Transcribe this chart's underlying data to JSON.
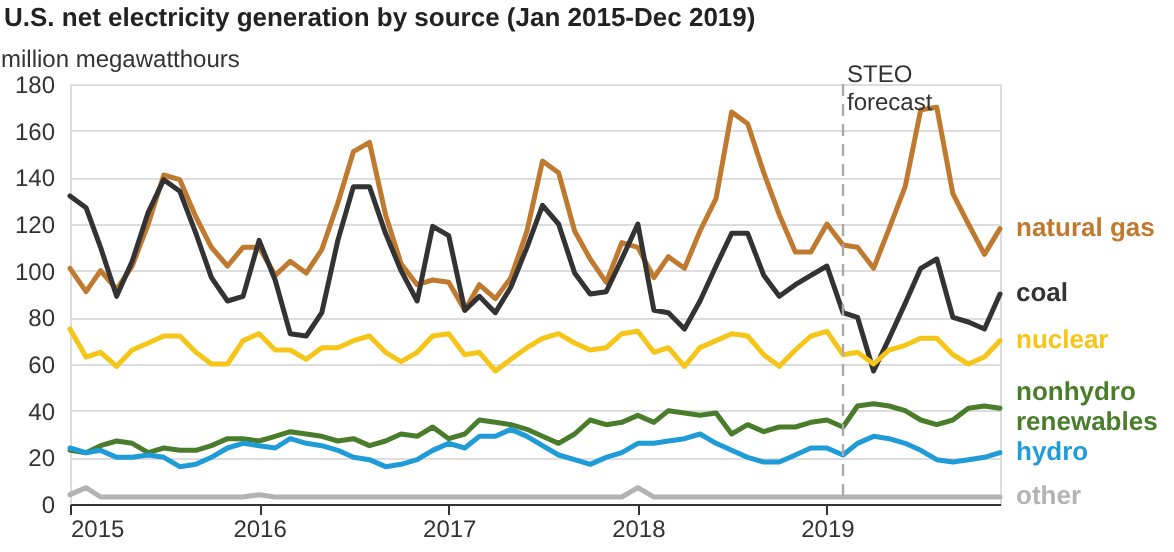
{
  "chart_data": {
    "type": "line",
    "title": "U.S. net electricity generation by source (Jan 2015-Dec 2019)",
    "ylabel": "million megawatthours",
    "xlim": [
      "2015-01",
      "2019-12"
    ],
    "xticks": [
      {
        "value": "2015-01",
        "label": "2015"
      },
      {
        "value": "2016-01",
        "label": "2016"
      },
      {
        "value": "2017-01",
        "label": "2017"
      },
      {
        "value": "2018-01",
        "label": "2018"
      },
      {
        "value": "2019-01",
        "label": "2019"
      }
    ],
    "ylim": [
      0,
      180
    ],
    "yticks": [
      0,
      20,
      40,
      60,
      80,
      100,
      120,
      140,
      160,
      180
    ],
    "grid": "y",
    "x": [
      "2015-01",
      "2015-02",
      "2015-03",
      "2015-04",
      "2015-05",
      "2015-06",
      "2015-07",
      "2015-08",
      "2015-09",
      "2015-10",
      "2015-11",
      "2015-12",
      "2016-01",
      "2016-02",
      "2016-03",
      "2016-04",
      "2016-05",
      "2016-06",
      "2016-07",
      "2016-08",
      "2016-09",
      "2016-10",
      "2016-11",
      "2016-12",
      "2017-01",
      "2017-02",
      "2017-03",
      "2017-04",
      "2017-05",
      "2017-06",
      "2017-07",
      "2017-08",
      "2017-09",
      "2017-10",
      "2017-11",
      "2017-12",
      "2018-01",
      "2018-02",
      "2018-03",
      "2018-04",
      "2018-05",
      "2018-06",
      "2018-07",
      "2018-08",
      "2018-09",
      "2018-10",
      "2018-11",
      "2018-12",
      "2019-01",
      "2019-02",
      "2019-03",
      "2019-04",
      "2019-05",
      "2019-06",
      "2019-07",
      "2019-08",
      "2019-09",
      "2019-10",
      "2019-11",
      "2019-12"
    ],
    "series": [
      {
        "name": "natural gas",
        "color": "#bf7a30",
        "values": [
          101,
          91,
          100,
          92,
          102,
          120,
          141,
          139,
          123,
          110,
          102,
          110,
          110,
          98,
          104,
          99,
          109,
          129,
          151,
          155,
          124,
          103,
          94,
          96,
          95,
          83,
          94,
          88,
          97,
          117,
          147,
          142,
          117,
          105,
          95,
          112,
          110,
          97,
          106,
          101,
          117,
          131,
          168,
          163,
          142,
          124,
          108,
          108,
          120,
          111,
          110,
          101,
          118,
          136,
          169,
          170,
          133,
          120,
          107,
          118
        ]
      },
      {
        "name": "coal",
        "color": "#333333",
        "values": [
          132,
          127,
          110,
          89,
          104,
          125,
          139,
          134,
          116,
          97,
          87,
          89,
          113,
          96,
          73,
          72,
          82,
          113,
          136,
          136,
          116,
          100,
          87,
          119,
          115,
          83,
          89,
          82,
          93,
          110,
          128,
          120,
          99,
          90,
          91,
          105,
          120,
          83,
          82,
          75,
          87,
          102,
          116,
          116,
          98,
          89,
          94,
          98,
          102,
          82,
          80,
          57,
          71,
          86,
          101,
          105,
          80,
          78,
          75,
          90
        ]
      },
      {
        "name": "nuclear",
        "color": "#f5c518",
        "values": [
          75,
          63,
          65,
          59,
          66,
          69,
          72,
          72,
          65,
          60,
          60,
          70,
          73,
          66,
          66,
          62,
          67,
          67,
          70,
          72,
          65,
          61,
          65,
          72,
          73,
          64,
          65,
          57,
          62,
          67,
          71,
          73,
          69,
          66,
          67,
          73,
          74,
          65,
          67,
          59,
          67,
          70,
          73,
          72,
          64,
          59,
          66,
          72,
          74,
          64,
          65,
          60,
          66,
          68,
          71,
          71,
          64,
          60,
          63,
          70
        ]
      },
      {
        "name": "nonhydro\nrenewables",
        "color": "#4a7d2b",
        "values": [
          23,
          22,
          25,
          27,
          26,
          22,
          24,
          23,
          23,
          25,
          28,
          28,
          27,
          29,
          31,
          30,
          29,
          27,
          28,
          25,
          27,
          30,
          29,
          33,
          28,
          30,
          36,
          35,
          34,
          32,
          29,
          26,
          30,
          36,
          34,
          35,
          38,
          35,
          40,
          39,
          38,
          39,
          30,
          34,
          31,
          33,
          33,
          35,
          36,
          33,
          42,
          43,
          42,
          40,
          36,
          34,
          36,
          41,
          42,
          41
        ]
      },
      {
        "name": "hydro",
        "color": "#1f9bd7",
        "values": [
          24,
          22,
          23,
          20,
          20,
          21,
          20,
          16,
          17,
          20,
          24,
          26,
          25,
          24,
          28,
          26,
          25,
          23,
          20,
          19,
          16,
          17,
          19,
          23,
          26,
          24,
          29,
          29,
          32,
          29,
          25,
          21,
          19,
          17,
          20,
          22,
          26,
          26,
          27,
          28,
          30,
          26,
          23,
          20,
          18,
          18,
          21,
          24,
          24,
          21,
          26,
          29,
          28,
          26,
          23,
          19,
          18,
          19,
          20,
          22
        ]
      },
      {
        "name": "other",
        "color": "#b3b3b3",
        "values": [
          4,
          7,
          3,
          3,
          3,
          3,
          3,
          3,
          3,
          3,
          3,
          3,
          4,
          3,
          3,
          3,
          3,
          3,
          3,
          3,
          3,
          3,
          3,
          3,
          3,
          3,
          3,
          3,
          3,
          3,
          3,
          3,
          3,
          3,
          3,
          3,
          7,
          3,
          3,
          3,
          3,
          3,
          3,
          3,
          3,
          3,
          3,
          3,
          3,
          3,
          3,
          3,
          3,
          3,
          3,
          3,
          3,
          3,
          3,
          3
        ]
      }
    ],
    "ref_lines": [
      {
        "axis": "x",
        "value": "2019-02",
        "label": "STEO\nforecast",
        "color": "#aaaaaa",
        "line_style": "dashed"
      }
    ]
  }
}
